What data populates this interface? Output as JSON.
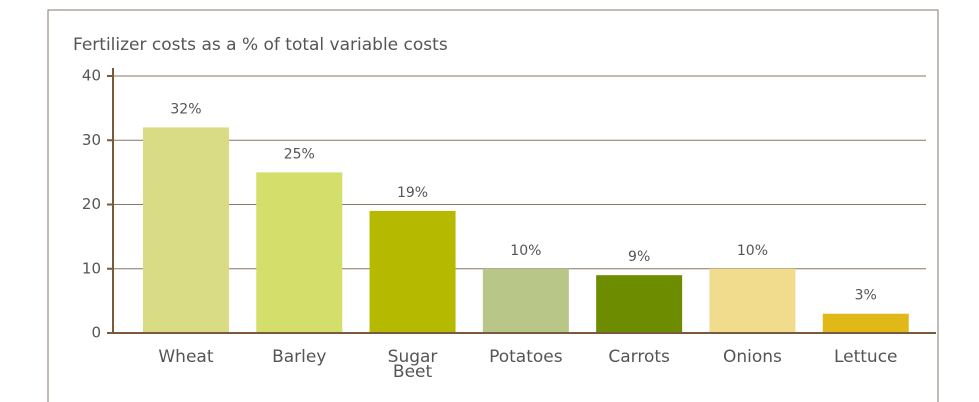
{
  "chart_data": {
    "type": "bar",
    "title": "Fertilizer costs as a % of total variable costs",
    "categories": [
      "Wheat",
      "Barley",
      "Sugar Beet",
      "Potatoes",
      "Carrots",
      "Onions",
      "Lettuce"
    ],
    "values": [
      32,
      25,
      19,
      10,
      9,
      10,
      3
    ],
    "value_labels": [
      "32%",
      "25%",
      "19%",
      "10%",
      "9%",
      "10%",
      "3%"
    ],
    "colors": [
      "#d9dc85",
      "#d4de6b",
      "#b5b900",
      "#b8c788",
      "#6e8c00",
      "#f0dc8c",
      "#e0b818"
    ],
    "ylim": [
      0,
      40
    ],
    "yticks": [
      0,
      10,
      20,
      30,
      40
    ],
    "grid": true
  }
}
